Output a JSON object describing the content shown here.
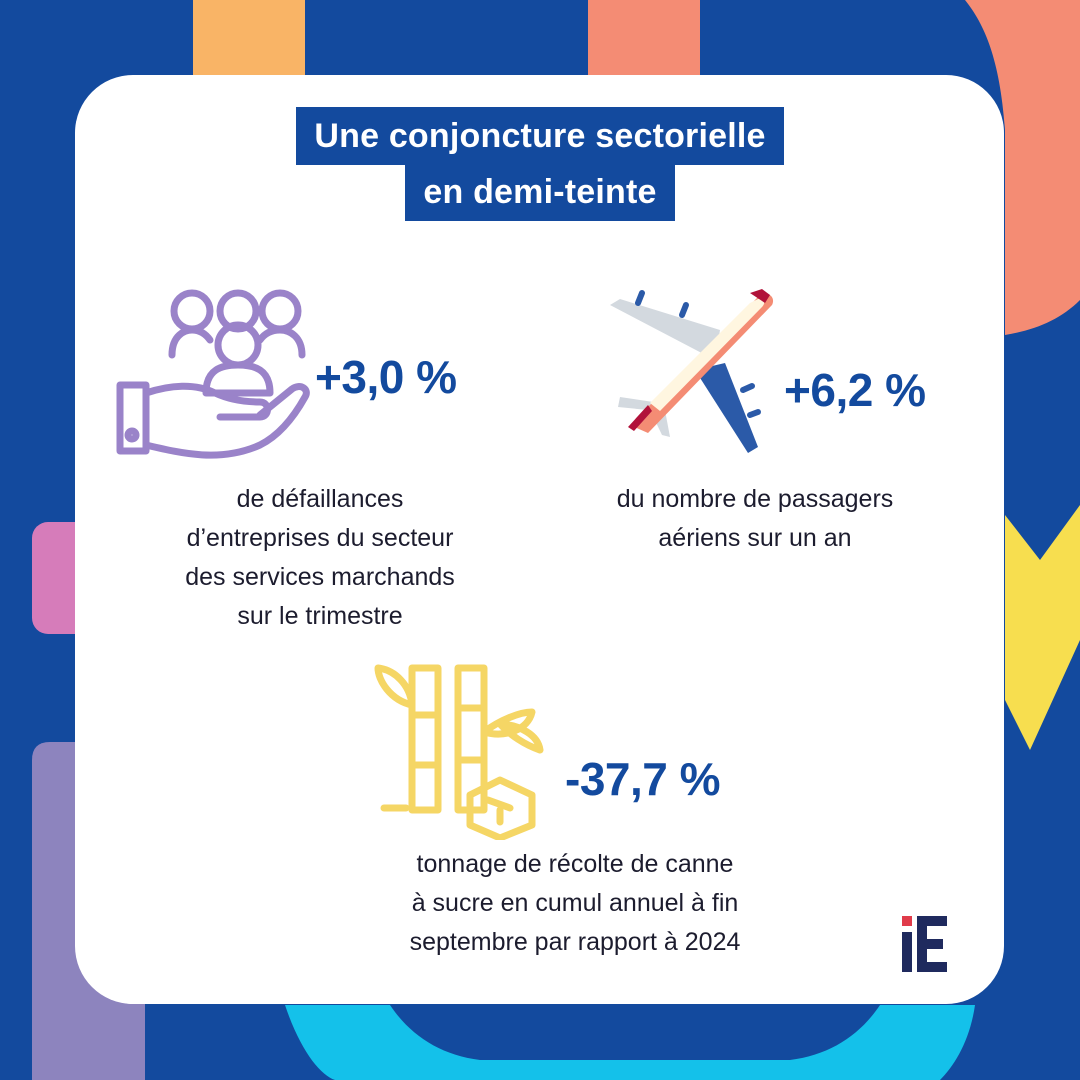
{
  "title": {
    "line1": "Une conjoncture sectorielle",
    "line2": "en demi-teinte"
  },
  "stats": [
    {
      "value": "+3,0 %",
      "description": [
        "de défaillances",
        "d’entreprises du secteur",
        "des services marchands",
        "sur le trimestre"
      ],
      "icon": "hand-with-people-icon"
    },
    {
      "value": "+6,2 %",
      "description": [
        "du nombre de passagers",
        "aériens sur un an"
      ],
      "icon": "airplane-icon"
    },
    {
      "value": "-37,7 %",
      "description": [
        "tonnage de récolte de canne",
        "à sucre en cumul annuel à fin",
        "septembre par rapport à 2024"
      ],
      "icon": "sugarcane-icon"
    }
  ],
  "logo": "iE",
  "colors": {
    "brand_blue": "#134a9e",
    "lilac": "#9a83c9",
    "yellow": "#f5d665",
    "coral": "#f48c74",
    "background_blue": "#134a9e"
  }
}
